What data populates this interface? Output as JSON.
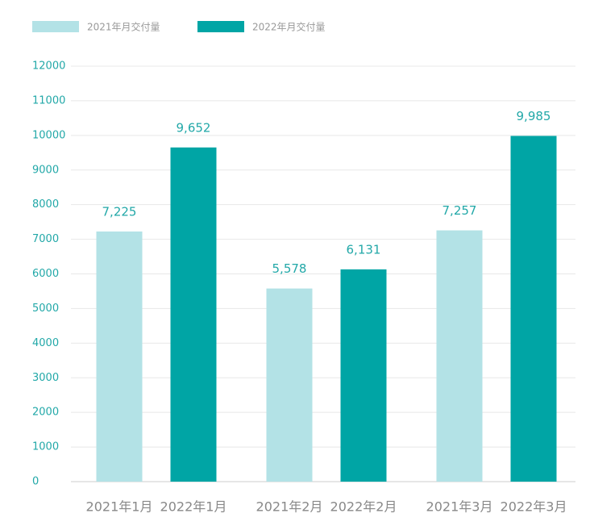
{
  "chart_data": {
    "type": "bar",
    "categories": [
      "2021年1月",
      "2022年1月",
      "2021年2月",
      "2022年2月",
      "2021年3月",
      "2022年3月"
    ],
    "series": [
      {
        "name": "2021年月交付量",
        "color": "#b3e2e6",
        "values": [
          7225,
          null,
          5578,
          null,
          7257,
          null
        ],
        "value_labels": [
          "7,225",
          null,
          "5,578",
          null,
          "7,257",
          null
        ]
      },
      {
        "name": "2022年月交付量",
        "color": "#00a5a5",
        "values": [
          null,
          9652,
          null,
          6131,
          null,
          9985
        ],
        "value_labels": [
          null,
          "9,652",
          null,
          "6,131",
          null,
          "9,985"
        ]
      }
    ],
    "ylim": [
      0,
      12000
    ],
    "yticks": [
      0,
      1000,
      2000,
      3000,
      4000,
      5000,
      6000,
      7000,
      8000,
      9000,
      10000,
      11000,
      12000
    ],
    "grid": true,
    "legend": "top-left"
  }
}
